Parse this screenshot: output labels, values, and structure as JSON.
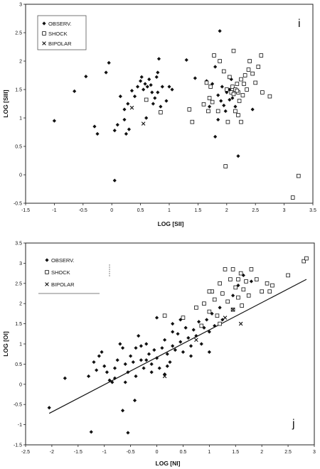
{
  "chart_data": [
    {
      "type": "scatter",
      "panel_label": "i",
      "xlabel": "LOG [SII]",
      "ylabel": "LOG [SIII]",
      "xlim": [
        -1.5,
        3.5
      ],
      "ylim": [
        -0.5,
        3.0
      ],
      "xticks": [
        "-1.5",
        "-1",
        "-0.5",
        "0",
        "0.5",
        "1",
        "1.5",
        "2",
        "2.5",
        "3",
        "3.5"
      ],
      "yticks": [
        "3",
        "2.5",
        "2",
        "1.5",
        "1",
        "0.5",
        "0",
        "-0.5"
      ],
      "grid": false,
      "legend_position": "top-left",
      "series": [
        {
          "name": "OBSERV.",
          "marker": "diamond",
          "points": [
            [
              -1.0,
              0.95
            ],
            [
              -0.65,
              1.47
            ],
            [
              -0.45,
              1.73
            ],
            [
              -0.3,
              0.85
            ],
            [
              -0.25,
              0.72
            ],
            [
              -0.1,
              1.8
            ],
            [
              -0.05,
              1.97
            ],
            [
              0.05,
              0.78
            ],
            [
              0.1,
              0.88
            ],
            [
              0.05,
              -0.1
            ],
            [
              0.15,
              1.38
            ],
            [
              0.22,
              0.97
            ],
            [
              0.25,
              0.72
            ],
            [
              0.3,
              0.8
            ],
            [
              0.22,
              1.15
            ],
            [
              0.28,
              1.25
            ],
            [
              0.35,
              1.48
            ],
            [
              0.4,
              1.38
            ],
            [
              0.45,
              1.55
            ],
            [
              0.5,
              1.65
            ],
            [
              0.52,
              1.72
            ],
            [
              0.55,
              1.5
            ],
            [
              0.58,
              1.6
            ],
            [
              0.62,
              1.55
            ],
            [
              0.65,
              1.68
            ],
            [
              0.68,
              1.58
            ],
            [
              0.7,
              1.45
            ],
            [
              0.72,
              1.25
            ],
            [
              0.75,
              1.35
            ],
            [
              0.78,
              1.72
            ],
            [
              0.8,
              1.45
            ],
            [
              0.85,
              1.2
            ],
            [
              0.88,
              1.55
            ],
            [
              0.95,
              1.3
            ],
            [
              1.0,
              1.55
            ],
            [
              1.05,
              1.5
            ],
            [
              0.82,
              2.04
            ],
            [
              0.6,
              1.0
            ],
            [
              0.8,
              1.8
            ],
            [
              1.3,
              2.02
            ],
            [
              1.45,
              1.7
            ],
            [
              1.65,
              1.65
            ],
            [
              1.75,
              1.6
            ],
            [
              1.8,
              1.9
            ],
            [
              1.85,
              1.4
            ],
            [
              1.88,
              2.53
            ],
            [
              1.9,
              1.3
            ],
            [
              1.95,
              1.22
            ],
            [
              1.98,
              1.12
            ],
            [
              2.0,
              1.45
            ],
            [
              2.05,
              1.5
            ],
            [
              2.1,
              1.35
            ],
            [
              2.15,
              1.2
            ],
            [
              2.2,
              1.05
            ],
            [
              1.8,
              0.67
            ],
            [
              2.2,
              0.33
            ],
            [
              1.85,
              0.97
            ],
            [
              2.45,
              1.15
            ],
            [
              2.05,
              1.32
            ],
            [
              1.92,
              1.55
            ],
            [
              2.08,
              1.68
            ],
            [
              1.7,
              1.2
            ]
          ]
        },
        {
          "name": "SHOCK",
          "marker": "square",
          "points": [
            [
              0.6,
              1.32
            ],
            [
              0.85,
              1.1
            ],
            [
              1.35,
              1.15
            ],
            [
              1.4,
              0.93
            ],
            [
              1.6,
              1.24
            ],
            [
              1.7,
              1.35
            ],
            [
              1.75,
              1.28
            ],
            [
              1.78,
              2.1
            ],
            [
              1.88,
              2.0
            ],
            [
              1.95,
              1.82
            ],
            [
              2.0,
              1.5
            ],
            [
              2.05,
              1.72
            ],
            [
              2.08,
              1.45
            ],
            [
              2.1,
              1.55
            ],
            [
              2.12,
              1.42
            ],
            [
              2.15,
              1.5
            ],
            [
              2.18,
              1.6
            ],
            [
              2.2,
              1.45
            ],
            [
              2.22,
              1.3
            ],
            [
              2.25,
              1.68
            ],
            [
              2.28,
              1.4
            ],
            [
              2.3,
              1.6
            ],
            [
              2.32,
              1.75
            ],
            [
              2.35,
              1.5
            ],
            [
              2.38,
              1.85
            ],
            [
              2.4,
              2.0
            ],
            [
              2.45,
              1.78
            ],
            [
              2.5,
              1.62
            ],
            [
              2.55,
              1.9
            ],
            [
              2.6,
              2.1
            ],
            [
              2.62,
              1.45
            ],
            [
              2.75,
              1.38
            ],
            [
              2.12,
              2.18
            ],
            [
              1.98,
              0.15
            ],
            [
              2.25,
              0.93
            ],
            [
              2.15,
              1.12
            ],
            [
              1.68,
              1.12
            ],
            [
              1.72,
              1.55
            ],
            [
              2.2,
              1.05
            ],
            [
              3.25,
              -0.02
            ],
            [
              3.15,
              -0.4
            ],
            [
              1.65,
              1.62
            ],
            [
              1.85,
              1.12
            ],
            [
              2.02,
              0.93
            ],
            [
              2.18,
              1.48
            ]
          ]
        },
        {
          "name": "BIPOLAR",
          "marker": "x",
          "points": [
            [
              0.35,
              1.18
            ],
            [
              0.55,
              0.9
            ]
          ]
        }
      ]
    },
    {
      "type": "scatter",
      "panel_label": "j",
      "xlabel": "LOG [NI]",
      "ylabel": "LOG [OI]",
      "xlim": [
        -2.5,
        3.0
      ],
      "ylim": [
        -1.5,
        3.5
      ],
      "xticks": [
        "-2.5",
        "-2",
        "-1.5",
        "-1",
        "-0.5",
        "0",
        "0.5",
        "1",
        "1.5",
        "2",
        "2.5",
        "3"
      ],
      "yticks": [
        "3.5",
        "3",
        "2.5",
        "2",
        "1.5",
        "1",
        "0.5",
        "0",
        "-0.5",
        "-1",
        "-1.5"
      ],
      "grid": false,
      "legend_position": "top-left",
      "fit_line": {
        "x": [
          -2.05,
          2.85
        ],
        "y": [
          -0.72,
          2.6
        ]
      },
      "series": [
        {
          "name": "OBSERV.",
          "marker": "diamond",
          "points": [
            [
              -2.05,
              -0.58
            ],
            [
              -1.75,
              0.15
            ],
            [
              -1.3,
              0.2
            ],
            [
              -1.25,
              -1.18
            ],
            [
              -1.2,
              0.55
            ],
            [
              -1.15,
              0.35
            ],
            [
              -1.05,
              0.8
            ],
            [
              -1.0,
              0.45
            ],
            [
              -0.95,
              0.3
            ],
            [
              -0.9,
              0.1
            ],
            [
              -0.85,
              0.05
            ],
            [
              -0.8,
              0.15
            ],
            [
              -0.75,
              0.6
            ],
            [
              -0.7,
              1.0
            ],
            [
              -0.65,
              0.9
            ],
            [
              -0.65,
              -0.65
            ],
            [
              -0.6,
              0.5
            ],
            [
              -0.55,
              0.3
            ],
            [
              -0.55,
              -1.2
            ],
            [
              -0.5,
              0.7
            ],
            [
              -0.45,
              0.55
            ],
            [
              -0.42,
              -0.4
            ],
            [
              -0.4,
              0.9
            ],
            [
              -0.35,
              1.2
            ],
            [
              -0.3,
              0.6
            ],
            [
              -0.25,
              0.4
            ],
            [
              -0.2,
              1.0
            ],
            [
              -0.15,
              0.75
            ],
            [
              -0.1,
              0.5
            ],
            [
              -0.05,
              0.85
            ],
            [
              0.0,
              1.65
            ],
            [
              0.0,
              0.65
            ],
            [
              0.05,
              0.4
            ],
            [
              0.1,
              0.9
            ],
            [
              0.15,
              1.1
            ],
            [
              0.2,
              0.75
            ],
            [
              0.25,
              0.55
            ],
            [
              0.3,
              1.3
            ],
            [
              0.3,
              0.95
            ],
            [
              0.35,
              0.85
            ],
            [
              0.4,
              1.25
            ],
            [
              0.45,
              1.05
            ],
            [
              0.5,
              0.8
            ],
            [
              0.55,
              1.4
            ],
            [
              0.6,
              1.15
            ],
            [
              0.65,
              0.95
            ],
            [
              0.7,
              1.35
            ],
            [
              0.75,
              1.2
            ],
            [
              0.8,
              1.55
            ],
            [
              0.85,
              1.0
            ],
            [
              0.9,
              1.4
            ],
            [
              0.95,
              1.6
            ],
            [
              1.0,
              1.3
            ],
            [
              1.05,
              1.75
            ],
            [
              1.1,
              1.45
            ],
            [
              1.2,
              1.9
            ],
            [
              1.25,
              1.6
            ],
            [
              1.35,
              2.05
            ],
            [
              1.45,
              2.2
            ],
            [
              1.55,
              2.45
            ],
            [
              1.65,
              2.7
            ],
            [
              1.8,
              2.55
            ],
            [
              -0.4,
              0.2
            ],
            [
              -0.1,
              0.3
            ],
            [
              0.2,
              0.45
            ],
            [
              0.65,
              0.7
            ],
            [
              1.0,
              0.8
            ],
            [
              -0.8,
              0.4
            ],
            [
              -0.3,
              0.95
            ],
            [
              0.45,
              1.6
            ],
            [
              0.15,
              0.25
            ],
            [
              -0.2,
              0.6
            ],
            [
              -1.1,
              0.7
            ],
            [
              -0.6,
              0.05
            ],
            [
              0.3,
              1.5
            ]
          ]
        },
        {
          "name": "SHOCK",
          "marker": "square",
          "points": [
            [
              0.15,
              1.7
            ],
            [
              0.5,
              1.65
            ],
            [
              0.75,
              1.9
            ],
            [
              0.9,
              2.0
            ],
            [
              1.0,
              1.8
            ],
            [
              1.05,
              2.3
            ],
            [
              1.1,
              2.1
            ],
            [
              1.15,
              1.7
            ],
            [
              1.2,
              2.5
            ],
            [
              1.25,
              2.25
            ],
            [
              1.3,
              2.85
            ],
            [
              1.35,
              2.05
            ],
            [
              1.4,
              2.6
            ],
            [
              1.45,
              1.85
            ],
            [
              1.5,
              2.4
            ],
            [
              1.55,
              2.15
            ],
            [
              1.6,
              2.75
            ],
            [
              1.62,
              1.95
            ],
            [
              1.65,
              2.35
            ],
            [
              1.7,
              2.55
            ],
            [
              1.75,
              2.2
            ],
            [
              1.8,
              2.85
            ],
            [
              1.9,
              2.6
            ],
            [
              2.0,
              2.3
            ],
            [
              2.1,
              2.5
            ],
            [
              2.2,
              2.45
            ],
            [
              2.5,
              2.7
            ],
            [
              2.8,
              3.05
            ],
            [
              2.85,
              3.12
            ],
            [
              1.45,
              2.85
            ],
            [
              1.0,
              2.3
            ],
            [
              1.2,
              1.5
            ],
            [
              1.55,
              2.6
            ],
            [
              2.15,
              2.3
            ],
            [
              0.85,
              1.45
            ]
          ]
        },
        {
          "name": "BIPOLAR",
          "marker": "x",
          "points": [
            [
              0.15,
              0.2
            ],
            [
              0.75,
              1.1
            ],
            [
              1.3,
              1.65
            ],
            [
              1.45,
              1.85
            ],
            [
              1.6,
              1.5
            ]
          ]
        }
      ]
    }
  ]
}
